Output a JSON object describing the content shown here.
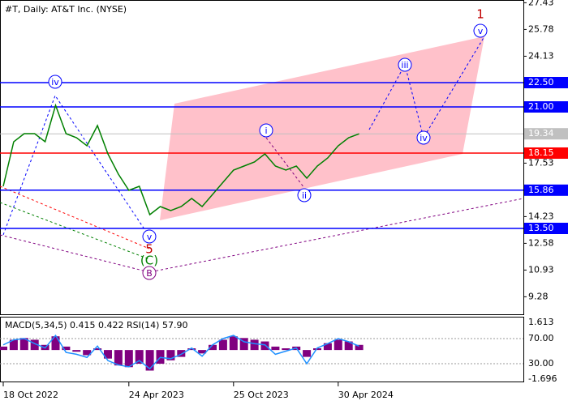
{
  "chart_data": [
    {
      "type": "line",
      "title": "#T, Daily:  AT&T Inc. (NYSE)",
      "color": "#008000",
      "categories": [
        "18 Oct 2022",
        null,
        null,
        null,
        null,
        null,
        null,
        null,
        null,
        null,
        null,
        null,
        "24 Apr 2023",
        null,
        null,
        null,
        null,
        null,
        null,
        null,
        null,
        null,
        "25 Oct 2023",
        null,
        null,
        null,
        null,
        null,
        null,
        null,
        null,
        null,
        "30 Apr 2024",
        null,
        null,
        null,
        null,
        null,
        null,
        null,
        null,
        null,
        null,
        null,
        null,
        null,
        null,
        null,
        null,
        null
      ],
      "values": [
        16.1,
        18.85,
        19.35,
        19.35,
        18.85,
        21.1,
        19.35,
        19.1,
        18.6,
        19.85,
        18.1,
        16.85,
        15.85,
        16.1,
        14.35,
        14.85,
        14.6,
        14.85,
        15.35,
        14.85,
        15.6,
        16.35,
        17.1,
        17.35,
        17.6,
        18.1,
        17.35,
        17.1,
        17.35,
        16.6,
        17.35,
        17.85,
        18.6,
        19.1,
        19.34,
        null,
        null,
        null,
        null,
        null,
        null,
        null,
        null,
        null,
        null,
        null,
        null,
        null,
        null,
        null
      ],
      "ylim": [
        8.2,
        27.6
      ],
      "yticks": [
        27.43,
        25.78,
        24.13,
        17.53,
        14.23,
        12.58,
        10.93,
        9.28
      ],
      "levels": [
        {
          "value": 22.5,
          "label": "22.50",
          "color": "#0000ff"
        },
        {
          "value": 21,
          "label": "21.00",
          "color": "#0000ff"
        },
        {
          "value": 18.15,
          "color": "#ff0000"
        },
        {
          "value": 15.86,
          "color": "#0000ff"
        },
        {
          "value": 13.5,
          "label": "13.50",
          "color": "#0000ff"
        }
      ],
      "last_price": 19.34,
      "wave_labels": [
        "1",
        "v",
        "iii",
        "iv",
        "i",
        "ii",
        "iv",
        "v",
        "5",
        "(C)",
        "B"
      ]
    },
    {
      "type": "indicator",
      "title": "MACD(5,34,5) 0.415 0.422 RSI(14) 57.90",
      "color": "#800080",
      "color2": "#1e90ff",
      "values": [
        0.2,
        0.6,
        0.7,
        0.6,
        0.3,
        0.8,
        0.2,
        -0.1,
        -0.3,
        0.1,
        -0.5,
        -0.9,
        -1.0,
        -0.8,
        -1.2,
        -0.8,
        -0.6,
        -0.4,
        0.1,
        -0.2,
        0.3,
        0.6,
        0.8,
        0.7,
        0.6,
        0.5,
        0.2,
        0.1,
        0.2,
        -0.4,
        0.1,
        0.4,
        0.6,
        0.5,
        0.3
      ],
      "rsi": [
        60,
        68,
        70,
        62,
        55,
        75,
        48,
        45,
        40,
        58,
        35,
        28,
        25,
        35,
        22,
        40,
        38,
        45,
        55,
        42,
        60,
        70,
        75,
        65,
        62,
        60,
        45,
        50,
        55,
        30,
        55,
        62,
        70,
        65,
        57.9
      ],
      "ylim": [
        -1.696,
        1.613
      ],
      "yticks": [
        1.613,
        -1.696
      ],
      "y2lim": [
        5.5,
        95.8
      ],
      "y2ticks": [
        {
          "value": 70,
          "label": "70.00"
        },
        {
          "value": 30,
          "label": "30.00"
        }
      ]
    }
  ]
}
